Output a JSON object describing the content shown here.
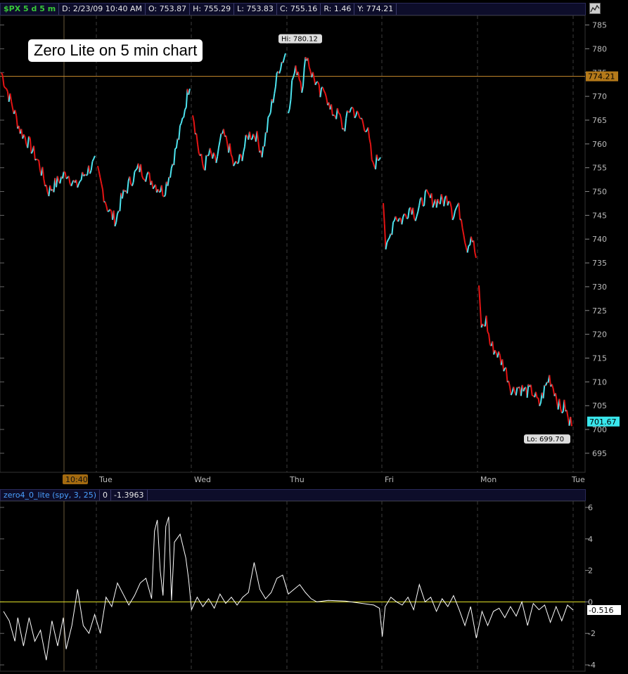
{
  "header": {
    "symbol": "$PX 5 d 5 m",
    "date": "D: 2/23/09 10:40 AM",
    "open": "O: 753.87",
    "high": "H: 755.29",
    "low": "L: 753.83",
    "close": "C: 755.16",
    "range": "R: 1.46",
    "y": "Y: 774.21"
  },
  "annotation": "Zero Lite on 5 min chart",
  "indicator_header": {
    "name": "zero4_0_lite (spy, 3, 25)",
    "v1": "0",
    "v2": "-1.3963"
  },
  "colors": {
    "up": "#4de3ee",
    "down": "#e41414",
    "ref_line": "#c88a2c",
    "zero_line": "#e8e82a",
    "osc": "#ffffff"
  },
  "chart_data": [
    {
      "type": "candlestick",
      "y_ticks": [
        695,
        700,
        705,
        710,
        715,
        720,
        725,
        730,
        735,
        740,
        745,
        750,
        755,
        760,
        765,
        770,
        775,
        780,
        785
      ],
      "ylim": [
        691,
        787
      ],
      "x_labels": [
        "Tue",
        "Wed",
        "Thu",
        "Fri",
        "Mon",
        "Tue"
      ],
      "cursor_time_label": "10:40",
      "reference_line": {
        "value": 774.21,
        "label": "774.21"
      },
      "last_price": {
        "value": 701.67,
        "label": "701.67"
      },
      "high_label": {
        "value": 780.12,
        "text": "Hi: 780.12"
      },
      "low_label": {
        "value": 699.7,
        "text": "Lo: 699.70"
      },
      "days": [
        {
          "name": "Mon",
          "path": [
            [
              0,
              775
            ],
            [
              0.1,
              769
            ],
            [
              0.2,
              763
            ],
            [
              0.3,
              760
            ],
            [
              0.4,
              756
            ],
            [
              0.5,
              750
            ],
            [
              0.6,
              752
            ],
            [
              0.7,
              754
            ],
            [
              0.8,
              751
            ],
            [
              0.9,
              754
            ],
            [
              1,
              756
            ]
          ]
        },
        {
          "name": "Tue",
          "path": [
            [
              0,
              754
            ],
            [
              0.1,
              747
            ],
            [
              0.15,
              745
            ],
            [
              0.2,
              744
            ],
            [
              0.25,
              748
            ],
            [
              0.35,
              752
            ],
            [
              0.45,
              755
            ],
            [
              0.55,
              753
            ],
            [
              0.65,
              751
            ],
            [
              0.72,
              750
            ],
            [
              0.8,
              755
            ],
            [
              0.9,
              763
            ],
            [
              0.95,
              768
            ],
            [
              1,
              773
            ]
          ]
        },
        {
          "name": "Wed",
          "path": [
            [
              0,
              767
            ],
            [
              0.07,
              758
            ],
            [
              0.12,
              755
            ],
            [
              0.18,
              758
            ],
            [
              0.25,
              756
            ],
            [
              0.32,
              762
            ],
            [
              0.38,
              760
            ],
            [
              0.45,
              755
            ],
            [
              0.52,
              757
            ],
            [
              0.6,
              762
            ],
            [
              0.68,
              762
            ],
            [
              0.75,
              758
            ],
            [
              0.82,
              765
            ],
            [
              0.88,
              771
            ],
            [
              0.93,
              776
            ],
            [
              1,
              779
            ]
          ]
        },
        {
          "name": "Thu",
          "path": [
            [
              0,
              767
            ],
            [
              0.05,
              774
            ],
            [
              0.1,
              776
            ],
            [
              0.15,
              772
            ],
            [
              0.2,
              779
            ],
            [
              0.25,
              775
            ],
            [
              0.3,
              773
            ],
            [
              0.35,
              770
            ],
            [
              0.4,
              772
            ],
            [
              0.45,
              767
            ],
            [
              0.55,
              766
            ],
            [
              0.6,
              763
            ],
            [
              0.68,
              768
            ],
            [
              0.74,
              766
            ],
            [
              0.8,
              765
            ],
            [
              0.86,
              763
            ],
            [
              0.92,
              755
            ],
            [
              1,
              758
            ]
          ]
        },
        {
          "name": "Fri",
          "path": [
            [
              0,
              749
            ],
            [
              0.03,
              737
            ],
            [
              0.08,
              741
            ],
            [
              0.12,
              745
            ],
            [
              0.2,
              744
            ],
            [
              0.3,
              747
            ],
            [
              0.35,
              745
            ],
            [
              0.45,
              749
            ],
            [
              0.55,
              748
            ],
            [
              0.65,
              748
            ],
            [
              0.72,
              749
            ],
            [
              0.75,
              745
            ],
            [
              0.8,
              747
            ],
            [
              0.85,
              744
            ],
            [
              0.9,
              738
            ],
            [
              0.95,
              741
            ],
            [
              1,
              736
            ]
          ]
        },
        {
          "name": "Mon",
          "path": [
            [
              0,
              729
            ],
            [
              0.03,
              721
            ],
            [
              0.08,
              723
            ],
            [
              0.12,
              718
            ],
            [
              0.2,
              716
            ],
            [
              0.28,
              713
            ],
            [
              0.36,
              708
            ],
            [
              0.42,
              709
            ],
            [
              0.5,
              708
            ],
            [
              0.58,
              708
            ],
            [
              0.65,
              705
            ],
            [
              0.7,
              708
            ],
            [
              0.76,
              711
            ],
            [
              0.82,
              708
            ],
            [
              0.88,
              704
            ],
            [
              0.93,
              705
            ],
            [
              0.97,
              701
            ],
            [
              1,
              702
            ]
          ]
        }
      ]
    },
    {
      "type": "line",
      "y_ticks": [
        -4,
        -2,
        0,
        2,
        4,
        6
      ],
      "ylim": [
        -4.4,
        6.4
      ],
      "last_value": {
        "value": -0.516,
        "label": "-0.516"
      },
      "zero_line": 0,
      "points": [
        [
          0,
          -0.6
        ],
        [
          0.01,
          -1.2
        ],
        [
          0.02,
          -2.5
        ],
        [
          0.025,
          -1
        ],
        [
          0.035,
          -2.8
        ],
        [
          0.045,
          -1
        ],
        [
          0.055,
          -2.5
        ],
        [
          0.065,
          -1.8
        ],
        [
          0.075,
          -3.7
        ],
        [
          0.085,
          -1.2
        ],
        [
          0.095,
          -2.8
        ],
        [
          0.105,
          -1
        ],
        [
          0.11,
          -3
        ],
        [
          0.12,
          -1.5
        ],
        [
          0.13,
          0.8
        ],
        [
          0.14,
          -1.5
        ],
        [
          0.15,
          -2
        ],
        [
          0.16,
          -0.8
        ],
        [
          0.17,
          -2
        ],
        [
          0.18,
          0.3
        ],
        [
          0.19,
          -0.3
        ],
        [
          0.2,
          1.2
        ],
        [
          0.21,
          0.5
        ],
        [
          0.22,
          -0.2
        ],
        [
          0.23,
          0.4
        ],
        [
          0.24,
          1.2
        ],
        [
          0.25,
          1.5
        ],
        [
          0.26,
          0.2
        ],
        [
          0.265,
          4.5
        ],
        [
          0.27,
          5.2
        ],
        [
          0.275,
          2
        ],
        [
          0.28,
          0.4
        ],
        [
          0.285,
          4.8
        ],
        [
          0.29,
          5.4
        ],
        [
          0.295,
          0.1
        ],
        [
          0.3,
          3.8
        ],
        [
          0.31,
          4.3
        ],
        [
          0.32,
          2.8
        ],
        [
          0.325,
          1.4
        ],
        [
          0.33,
          -0.5
        ],
        [
          0.34,
          0.3
        ],
        [
          0.35,
          -0.3
        ],
        [
          0.36,
          0.2
        ],
        [
          0.37,
          -0.4
        ],
        [
          0.38,
          0.5
        ],
        [
          0.39,
          -0.1
        ],
        [
          0.4,
          0.3
        ],
        [
          0.41,
          -0.2
        ],
        [
          0.42,
          0.3
        ],
        [
          0.43,
          0.6
        ],
        [
          0.44,
          2.5
        ],
        [
          0.45,
          0.8
        ],
        [
          0.46,
          0.2
        ],
        [
          0.47,
          0.6
        ],
        [
          0.48,
          1.5
        ],
        [
          0.49,
          1.7
        ],
        [
          0.5,
          0.5
        ],
        [
          0.51,
          0.8
        ],
        [
          0.52,
          1.1
        ],
        [
          0.53,
          0.6
        ],
        [
          0.54,
          0.2
        ],
        [
          0.55,
          0
        ],
        [
          0.57,
          0.1
        ],
        [
          0.6,
          0.05
        ],
        [
          0.63,
          -0.1
        ],
        [
          0.65,
          -0.2
        ],
        [
          0.66,
          -0.4
        ],
        [
          0.665,
          -2.2
        ],
        [
          0.67,
          -0.3
        ],
        [
          0.68,
          0.3
        ],
        [
          0.69,
          0
        ],
        [
          0.7,
          -0.2
        ],
        [
          0.71,
          0.3
        ],
        [
          0.72,
          -0.5
        ],
        [
          0.73,
          1.1
        ],
        [
          0.74,
          0
        ],
        [
          0.75,
          0.3
        ],
        [
          0.76,
          -0.6
        ],
        [
          0.77,
          0.2
        ],
        [
          0.78,
          -0.3
        ],
        [
          0.79,
          0.4
        ],
        [
          0.8,
          -0.5
        ],
        [
          0.81,
          -1.5
        ],
        [
          0.82,
          -0.3
        ],
        [
          0.83,
          -2.3
        ],
        [
          0.84,
          -0.6
        ],
        [
          0.85,
          -1.5
        ],
        [
          0.86,
          -0.6
        ],
        [
          0.87,
          -0.4
        ],
        [
          0.88,
          -1.0
        ],
        [
          0.89,
          -0.3
        ],
        [
          0.9,
          -0.9
        ],
        [
          0.91,
          0
        ],
        [
          0.92,
          -1.5
        ],
        [
          0.93,
          -0.1
        ],
        [
          0.94,
          -0.5
        ],
        [
          0.95,
          -0.2
        ],
        [
          0.96,
          -1.3
        ],
        [
          0.97,
          -0.3
        ],
        [
          0.98,
          -1.2
        ],
        [
          0.99,
          -0.2
        ],
        [
          1,
          -0.516
        ]
      ]
    }
  ]
}
